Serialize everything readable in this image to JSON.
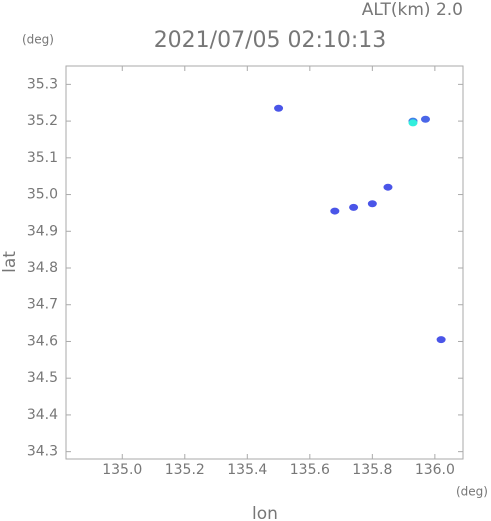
{
  "chart_data": {
    "type": "scatter",
    "title": "2021/07/05 02:10:13",
    "subtitle": "ALT(km) 2.0",
    "y_unit": "(deg)",
    "x_unit": "(deg)",
    "xlabel": "lon",
    "ylabel": "lat",
    "x": [
      135.5,
      135.93,
      135.97,
      135.93,
      135.85,
      135.74,
      135.68,
      135.8,
      136.02
    ],
    "y": [
      35.235,
      35.2,
      35.205,
      35.195,
      35.02,
      34.965,
      34.955,
      34.975,
      34.605
    ],
    "colors": [
      "#4a55e8",
      "#3f7fe8",
      "#4a66e8",
      "#33eedd",
      "#4a55e8",
      "#4a55e8",
      "#4a55e8",
      "#4a55e8",
      "#4a55e8"
    ],
    "xlim": [
      134.82,
      136.09
    ],
    "ylim": [
      34.28,
      35.35
    ],
    "xticks": [
      {
        "value": 135.0,
        "label": "135.0"
      },
      135.2,
      135.4,
      135.6,
      135.8,
      {
        "value": 136.0,
        "label": "136.0"
      }
    ],
    "yticks": [
      34.3,
      34.4,
      34.5,
      34.6,
      34.7,
      34.8,
      34.9,
      {
        "value": 35.0,
        "label": "35.0"
      },
      35.1,
      35.2,
      35.3
    ]
  }
}
